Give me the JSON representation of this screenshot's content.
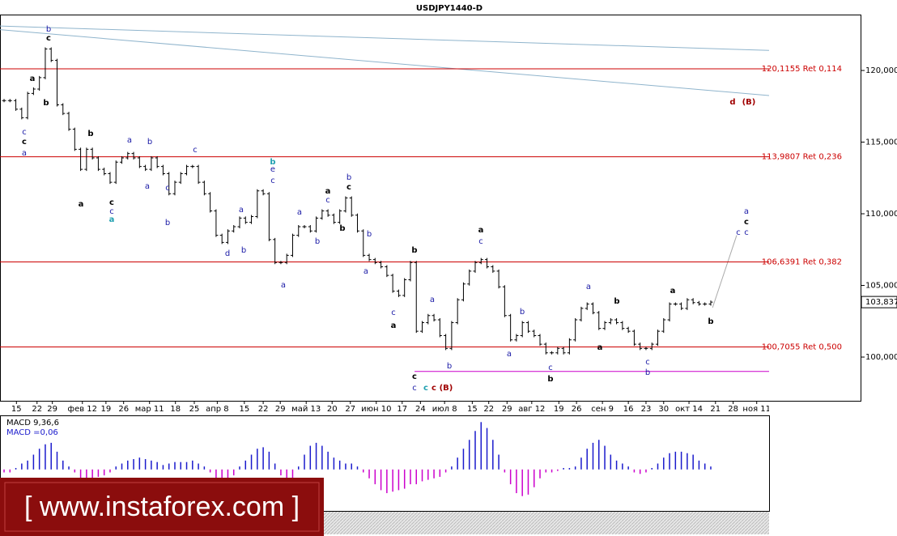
{
  "chart_data": [
    {
      "type": "price-bars",
      "title": "USDJPY1440-D",
      "values": [
        117.9,
        117.9,
        117.3,
        116.7,
        118.4,
        118.7,
        119.5,
        121.5,
        120.7,
        117.6,
        117.0,
        115.9,
        114.5,
        113.1,
        114.5,
        113.9,
        113.1,
        112.8,
        112.2,
        113.6,
        113.9,
        114.2,
        113.9,
        113.3,
        113.1,
        113.9,
        113.3,
        112.8,
        111.4,
        112.2,
        112.8,
        113.3,
        113.3,
        112.2,
        111.4,
        110.2,
        108.5,
        108.0,
        108.8,
        109.1,
        109.7,
        109.4,
        109.8,
        111.6,
        111.4,
        108.2,
        106.6,
        106.6,
        107.1,
        108.5,
        109.1,
        109.1,
        108.8,
        109.7,
        110.2,
        109.9,
        109.4,
        110.2,
        111.1,
        109.9,
        108.8,
        107.1,
        106.8,
        106.6,
        106.3,
        105.7,
        104.6,
        104.3,
        105.4,
        106.6,
        101.8,
        102.4,
        102.9,
        102.6,
        101.5,
        100.6,
        102.4,
        104.0,
        105.1,
        106.0,
        106.6,
        106.8,
        106.3,
        106.0,
        104.9,
        102.9,
        101.2,
        101.5,
        102.4,
        101.8,
        101.5,
        100.9,
        100.3,
        100.3,
        100.6,
        100.3,
        101.2,
        102.6,
        103.4,
        103.7,
        103.1,
        102.0,
        102.4,
        102.6,
        102.4,
        102.0,
        101.8,
        100.9,
        100.6,
        100.6,
        100.9,
        101.8,
        102.6,
        103.7,
        103.7,
        103.4,
        104.0,
        103.8,
        103.7,
        103.7,
        103.837
      ],
      "color": "#000000",
      "xlim": [
        -0.69,
        129.9
      ],
      "xticks": [
        {
          "value": 2.1,
          "label": "15"
        },
        {
          "value": 5.6,
          "label": "22"
        },
        {
          "value": 8.2,
          "label": "29"
        },
        {
          "value": 13.3,
          "label": "фев 12"
        },
        {
          "value": 17.3,
          "label": "19"
        },
        {
          "value": 20.3,
          "label": "26"
        },
        {
          "value": 24.7,
          "label": "мар 11"
        },
        {
          "value": 29.1,
          "label": "18"
        },
        {
          "value": 32.3,
          "label": "25"
        },
        {
          "value": 36.2,
          "label": "апр 8"
        },
        {
          "value": 40.8,
          "label": "15"
        },
        {
          "value": 44.0,
          "label": "22"
        },
        {
          "value": 46.9,
          "label": "29"
        },
        {
          "value": 51.3,
          "label": "май 13"
        },
        {
          "value": 55.7,
          "label": "20"
        },
        {
          "value": 58.8,
          "label": "27"
        },
        {
          "value": 63.2,
          "label": "июн 10"
        },
        {
          "value": 67.6,
          "label": "17"
        },
        {
          "value": 70.7,
          "label": "24"
        },
        {
          "value": 74.8,
          "label": "июл 8"
        },
        {
          "value": 79.5,
          "label": "15"
        },
        {
          "value": 82.3,
          "label": "22"
        },
        {
          "value": 85.4,
          "label": "29"
        },
        {
          "value": 89.6,
          "label": "авг 12"
        },
        {
          "value": 94.2,
          "label": "19"
        },
        {
          "value": 97.2,
          "label": "26"
        },
        {
          "value": 101.6,
          "label": "сен 9"
        },
        {
          "value": 106.0,
          "label": "16"
        },
        {
          "value": 109.0,
          "label": "23"
        },
        {
          "value": 112.0,
          "label": "30"
        },
        {
          "value": 116.3,
          "label": "окт 14"
        },
        {
          "value": 120.8,
          "label": "21"
        },
        {
          "value": 123.8,
          "label": "28"
        },
        {
          "value": 127.8,
          "label": "ноя 11"
        }
      ],
      "ylim": [
        96.95,
        123.9
      ],
      "yticks": [
        {
          "value": 100,
          "label": "100,000"
        },
        {
          "value": 105,
          "label": "105,000"
        },
        {
          "value": 110,
          "label": "110,000"
        },
        {
          "value": 115,
          "label": "115,000"
        },
        {
          "value": 120,
          "label": "120,000"
        }
      ],
      "levels": [
        {
          "value": 120.1155,
          "label": "120,1155 Ret 0,114"
        },
        {
          "value": 113.9807,
          "label": "113,9807 Ret 0,236"
        },
        {
          "value": 106.6391,
          "label": "106,6391 Ret 0,382"
        },
        {
          "value": 100.7055,
          "label": "100,7055 Ret 0,500"
        }
      ],
      "level_color": "#cc0000",
      "support": {
        "x": [
          69.7,
          129.9
        ],
        "value": 99.0,
        "color": "#cc00cc"
      },
      "trendlines": [
        {
          "x": [
            -0.69,
            129.9
          ],
          "y": [
            123.1,
            121.4
          ],
          "color": "#8fb4cc"
        },
        {
          "x": [
            -0.69,
            129.9
          ],
          "y": [
            122.85,
            118.25
          ],
          "color": "#8fb4cc"
        },
        {
          "x": [
            120.3,
            124.4
          ],
          "y": [
            103.45,
            108.5
          ],
          "color": "#aaaaaa"
        }
      ],
      "last_price": {
        "value": 103.837,
        "label": "103,837"
      },
      "annotations": [
        {
          "text": "b",
          "color": "#1a1aa6"
        },
        {
          "text": "c",
          "color": "#000000"
        },
        {
          "text": "a",
          "color": "#000000"
        },
        {
          "text": "b",
          "color": "#000000"
        },
        {
          "text": "c",
          "color": "#1a1aa6"
        },
        {
          "text": "c",
          "color": "#000000"
        },
        {
          "text": "a",
          "color": "#1a1aa6"
        },
        {
          "text": "b",
          "color": "#000000"
        },
        {
          "text": "a",
          "color": "#000000"
        },
        {
          "text": "c",
          "color": "#000000"
        },
        {
          "text": "c",
          "color": "#1a1aa6"
        },
        {
          "text": "a",
          "color": "#20a0b0"
        },
        {
          "text": "a",
          "color": "#1a1aa6"
        },
        {
          "text": "b",
          "color": "#1a1aa6"
        },
        {
          "text": "a",
          "color": "#1a1aa6"
        },
        {
          "text": "c",
          "color": "#1a1aa6"
        },
        {
          "text": "c",
          "color": "#1a1aa6"
        },
        {
          "text": "b",
          "color": "#1a1aa6"
        },
        {
          "text": "b",
          "color": "#20a0b0"
        },
        {
          "text": "e",
          "color": "#1a1aa6"
        },
        {
          "text": "c",
          "color": "#1a1aa6"
        },
        {
          "text": "a",
          "color": "#1a1aa6"
        },
        {
          "text": "d",
          "color": "#1a1aa6"
        },
        {
          "text": "b",
          "color": "#1a1aa6"
        },
        {
          "text": "a",
          "color": "#1a1aa6"
        },
        {
          "text": "a",
          "color": "#1a1aa6"
        },
        {
          "text": "b",
          "color": "#1a1aa6"
        },
        {
          "text": "a",
          "color": "#000000"
        },
        {
          "text": "c",
          "color": "#1a1aa6"
        },
        {
          "text": "b",
          "color": "#1a1aa6"
        },
        {
          "text": "c",
          "color": "#000000"
        },
        {
          "text": "b",
          "color": "#000000"
        },
        {
          "text": "b",
          "color": "#1a1aa6"
        },
        {
          "text": "a",
          "color": "#1a1aa6"
        },
        {
          "text": "c",
          "color": "#1a1aa6"
        },
        {
          "text": "a",
          "color": "#000000"
        },
        {
          "text": "b",
          "color": "#000000"
        },
        {
          "text": "c",
          "color": "#000000"
        },
        {
          "text": "c",
          "color": "#1a1aa6"
        },
        {
          "text": "c",
          "color": "#20a0b0"
        },
        {
          "text": "c",
          "color": "#a00000"
        },
        {
          "text": "(B)",
          "color": "#a00000"
        },
        {
          "text": "a",
          "color": "#1a1aa6"
        },
        {
          "text": "b",
          "color": "#1a1aa6"
        },
        {
          "text": "a",
          "color": "#000000"
        },
        {
          "text": "c",
          "color": "#1a1aa6"
        },
        {
          "text": "a",
          "color": "#1a1aa6"
        },
        {
          "text": "b",
          "color": "#1a1aa6"
        },
        {
          "text": "c",
          "color": "#1a1aa6"
        },
        {
          "text": "b",
          "color": "#000000"
        },
        {
          "text": "a",
          "color": "#1a1aa6"
        },
        {
          "text": "a",
          "color": "#000000"
        },
        {
          "text": "b",
          "color": "#000000"
        },
        {
          "text": "c",
          "color": "#1a1aa6"
        },
        {
          "text": "b",
          "color": "#1a1aa6"
        },
        {
          "text": "a",
          "color": "#000000"
        },
        {
          "text": "b",
          "color": "#000000"
        },
        {
          "text": "a",
          "color": "#1a1aa6"
        },
        {
          "text": "c",
          "color": "#000000"
        },
        {
          "text": "c",
          "color": "#1a1aa6"
        },
        {
          "text": "c",
          "color": "#1a1aa6"
        },
        {
          "text": "d",
          "color": "#a00000"
        },
        {
          "text": "(B)",
          "color": "#a00000"
        }
      ]
    },
    {
      "type": "histogram-bars",
      "title": "MACD 9,36,6",
      "label": "MACD =0,06",
      "values": [
        -0.1,
        -0.1,
        0.05,
        0.2,
        0.3,
        0.5,
        0.7,
        0.85,
        0.9,
        0.6,
        0.3,
        0.1,
        -0.1,
        -0.3,
        -0.35,
        -0.3,
        -0.25,
        -0.2,
        -0.1,
        0.1,
        0.2,
        0.3,
        0.35,
        0.4,
        0.35,
        0.3,
        0.25,
        0.15,
        0.2,
        0.25,
        0.25,
        0.25,
        0.3,
        0.2,
        0.1,
        -0.1,
        -0.3,
        -0.45,
        -0.4,
        -0.2,
        0.1,
        0.3,
        0.5,
        0.7,
        0.75,
        0.6,
        0.2,
        -0.2,
        -0.4,
        -0.3,
        0.1,
        0.5,
        0.8,
        0.9,
        0.8,
        0.6,
        0.4,
        0.3,
        0.2,
        0.2,
        0.1,
        -0.1,
        -0.3,
        -0.5,
        -0.7,
        -0.8,
        -0.75,
        -0.7,
        -0.65,
        -0.5,
        -0.5,
        -0.4,
        -0.35,
        -0.3,
        -0.25,
        -0.1,
        0.1,
        0.4,
        0.7,
        1.0,
        1.3,
        1.6,
        1.4,
        1.0,
        0.5,
        -0.1,
        -0.5,
        -0.8,
        -0.9,
        -0.85,
        -0.6,
        -0.3,
        -0.1,
        -0.1,
        -0.05,
        0.05,
        0.05,
        0.1,
        0.4,
        0.7,
        0.9,
        1.0,
        0.8,
        0.5,
        0.3,
        0.2,
        0.1,
        -0.1,
        -0.15,
        -0.1,
        0.05,
        0.2,
        0.4,
        0.55,
        0.6,
        0.6,
        0.55,
        0.5,
        0.3,
        0.2,
        0.1
      ],
      "colors": {
        "positive": "#1a1acc",
        "negative": "#cc00cc"
      },
      "xlim": [
        -0.69,
        129.9
      ],
      "ylim": [
        -1.4,
        1.8
      ]
    }
  ],
  "watermark": "[ www.instaforex.com ]"
}
